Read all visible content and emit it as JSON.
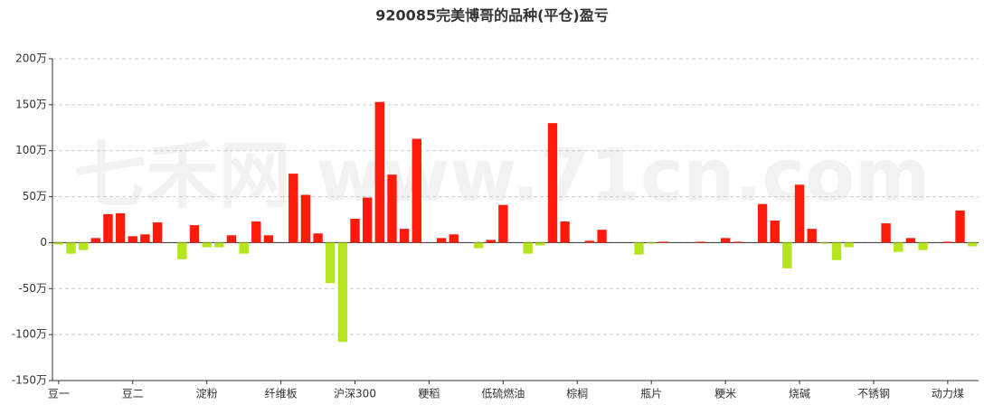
{
  "chart_data": {
    "type": "bar",
    "title": "920085完美博哥的品种(平仓)盈亏",
    "watermark": "七禾网 www.71cn.com",
    "categories": [
      "豆一",
      null,
      null,
      null,
      null,
      null,
      "豆二",
      null,
      null,
      null,
      null,
      null,
      "淀粉",
      null,
      null,
      null,
      null,
      null,
      "纤维板",
      null,
      null,
      null,
      null,
      null,
      "沪深300",
      null,
      null,
      null,
      null,
      null,
      "粳稻",
      null,
      null,
      null,
      null,
      null,
      "低硫燃油",
      null,
      null,
      null,
      null,
      null,
      "棕榈",
      null,
      null,
      null,
      null,
      null,
      "瓶片",
      null,
      null,
      null,
      null,
      null,
      "粳米",
      null,
      null,
      null,
      null,
      null,
      "烧碱",
      null,
      null,
      null,
      null,
      null,
      "不锈钢",
      null,
      null,
      null,
      null,
      null,
      "动力煤",
      null,
      null
    ],
    "values": [
      -2,
      -12,
      -8,
      5,
      31,
      32,
      7,
      9,
      22,
      0,
      -18,
      19,
      -5,
      -5,
      8,
      -12,
      23,
      8,
      0,
      75,
      52,
      10,
      -44,
      -108,
      26,
      49,
      153,
      74,
      15,
      113,
      0,
      5,
      9,
      0,
      -6,
      3,
      41,
      0,
      -12,
      -3,
      130,
      23,
      0,
      2,
      14,
      0,
      0,
      -13,
      -1,
      1,
      0,
      0,
      1,
      0,
      5,
      1,
      0,
      42,
      24,
      -28,
      63,
      15,
      -1,
      -19,
      -5,
      0,
      0,
      21,
      -10,
      5,
      -8,
      0,
      1,
      35,
      -4
    ],
    "color": "#ff1a0a",
    "negative_color": "#b5e61d",
    "ylim": [
      -150,
      200
    ],
    "yticks": [
      {
        "value": -150,
        "label": "-150万"
      },
      {
        "value": -100,
        "label": "-100万"
      },
      {
        "value": -50,
        "label": "-50万"
      },
      {
        "value": 0,
        "label": "0"
      },
      {
        "value": 50,
        "label": "50万"
      },
      {
        "value": 100,
        "label": "100万"
      },
      {
        "value": 150,
        "label": "150万"
      },
      {
        "value": 200,
        "label": "200万"
      }
    ],
    "grid": true
  }
}
